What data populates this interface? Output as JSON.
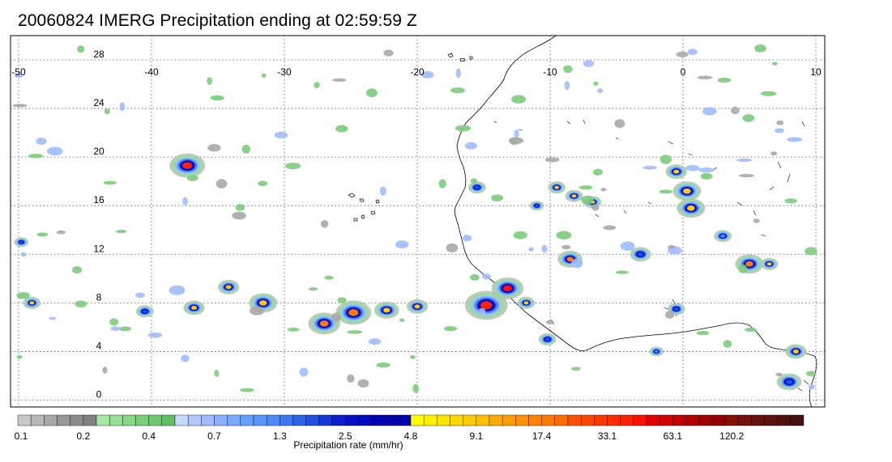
{
  "title": "20060824 IMERG Precipitation ending at 02:59:59 Z",
  "map": {
    "lon_ticks": [
      "-50",
      "-40",
      "-30",
      "-20",
      "-10",
      "0",
      "10"
    ],
    "lat_ticks": [
      "28",
      "24",
      "20",
      "16",
      "12",
      "8",
      "4",
      "0"
    ],
    "lon_range": [
      -50,
      10
    ],
    "lat_range": [
      -0.5,
      30
    ],
    "grid": "dotted"
  },
  "colorbar": {
    "title": "Precipitation rate (mm/hr)",
    "labels": [
      "0.1",
      "0.2",
      "0.4",
      "0.7",
      "1.3",
      "2.5",
      "4.8",
      "9.1",
      "17.4",
      "33.1",
      "63.1",
      "120.2"
    ],
    "colors": [
      "#c8c8c8",
      "#b8b8b8",
      "#a8a8a8",
      "#989898",
      "#8c8c8c",
      "#808080",
      "#a6e8a6",
      "#96e096",
      "#86d886",
      "#78d078",
      "#6cc86c",
      "#60c060",
      "#c8d8ff",
      "#b4c8ff",
      "#a0bcff",
      "#8cb0ff",
      "#78a8ff",
      "#68a0ff",
      "#5a96ff",
      "#4c88f8",
      "#3c78f0",
      "#2c66e8",
      "#2050e0",
      "#1638d8",
      "#0a20d0",
      "#0010c8",
      "#0008c0",
      "#0000b8",
      "#0000b0",
      "#0000a8",
      "#ffff00",
      "#fff000",
      "#ffe400",
      "#ffd800",
      "#ffcc00",
      "#ffc000",
      "#ffa800",
      "#ff9c00",
      "#ff9000",
      "#ff8400",
      "#ff7800",
      "#ff6c00",
      "#ff5000",
      "#ff4400",
      "#ff3800",
      "#ff2c00",
      "#ff2000",
      "#ff1000",
      "#e00000",
      "#d00000",
      "#c00000",
      "#b00000",
      "#a00000",
      "#900000",
      "#801000",
      "#741010",
      "#681010",
      "#5c1010",
      "#501010",
      "#441010"
    ]
  },
  "cells": [
    {
      "lon": -37.3,
      "lat": 19.3,
      "r": 10,
      "peak": "#ff2000"
    },
    {
      "lon": -34.2,
      "lat": 9.3,
      "r": 6,
      "peak": "#ffc000"
    },
    {
      "lon": -31.6,
      "lat": 8.0,
      "r": 8,
      "peak": "#ffc000"
    },
    {
      "lon": -36.8,
      "lat": 7.6,
      "r": 6,
      "peak": "#ffcc00"
    },
    {
      "lon": -27.0,
      "lat": 6.3,
      "r": 9,
      "peak": "#ff7800"
    },
    {
      "lon": -24.8,
      "lat": 7.2,
      "r": 10,
      "peak": "#ff7800"
    },
    {
      "lon": -22.3,
      "lat": 7.4,
      "r": 7,
      "peak": "#ffcc00"
    },
    {
      "lon": -20.0,
      "lat": 7.7,
      "r": 6,
      "peak": "#ffcc00"
    },
    {
      "lon": -14.8,
      "lat": 7.8,
      "r": 12,
      "peak": "#ff2000"
    },
    {
      "lon": -13.2,
      "lat": 9.2,
      "r": 9,
      "peak": "#ff1000"
    },
    {
      "lon": -11.8,
      "lat": 8.0,
      "r": 5,
      "peak": "#ffcc00"
    },
    {
      "lon": -9.5,
      "lat": 17.5,
      "r": 5,
      "peak": "#ffcc00"
    },
    {
      "lon": -8.2,
      "lat": 16.8,
      "r": 5,
      "peak": "#ffcc00"
    },
    {
      "lon": -6.8,
      "lat": 16.3,
      "r": 5,
      "peak": "#ffcc00"
    },
    {
      "lon": -8.5,
      "lat": 11.6,
      "r": 7,
      "peak": "#ff7800"
    },
    {
      "lon": -0.5,
      "lat": 18.8,
      "r": 6,
      "peak": "#ffcc00"
    },
    {
      "lon": 0.3,
      "lat": 17.2,
      "r": 8,
      "peak": "#ffcc00"
    },
    {
      "lon": 0.6,
      "lat": 15.8,
      "r": 8,
      "peak": "#ffcc00"
    },
    {
      "lon": -3.2,
      "lat": 12.0,
      "r": 6,
      "peak": "#2050e0"
    },
    {
      "lon": 5.0,
      "lat": 11.2,
      "r": 8,
      "peak": "#ff7800"
    },
    {
      "lon": 6.5,
      "lat": 11.2,
      "r": 5,
      "peak": "#ffcc00"
    },
    {
      "lon": 8.5,
      "lat": 4.0,
      "r": 6,
      "peak": "#ffcc00"
    },
    {
      "lon": -49.0,
      "lat": 8.0,
      "r": 5,
      "peak": "#ffcc00"
    },
    {
      "lon": -40.5,
      "lat": 7.3,
      "r": 5,
      "peak": "#2050e0"
    },
    {
      "lon": -15.5,
      "lat": 17.5,
      "r": 5,
      "peak": "#2050e0"
    },
    {
      "lon": -11.0,
      "lat": 16.0,
      "r": 4,
      "peak": "#2050e0"
    },
    {
      "lon": -10.2,
      "lat": 5.0,
      "r": 5,
      "peak": "#2050e0"
    },
    {
      "lon": -0.5,
      "lat": 7.5,
      "r": 5,
      "peak": "#2050e0"
    },
    {
      "lon": 8.0,
      "lat": 1.5,
      "r": 7,
      "peak": "#2050e0"
    },
    {
      "lon": -49.8,
      "lat": 13.0,
      "r": 4,
      "peak": "#2050e0"
    },
    {
      "lon": 3.0,
      "lat": 13.5,
      "r": 5,
      "peak": "#4c88f8"
    },
    {
      "lon": -2.0,
      "lat": 4.0,
      "r": 4,
      "peak": "#4c88f8"
    }
  ]
}
